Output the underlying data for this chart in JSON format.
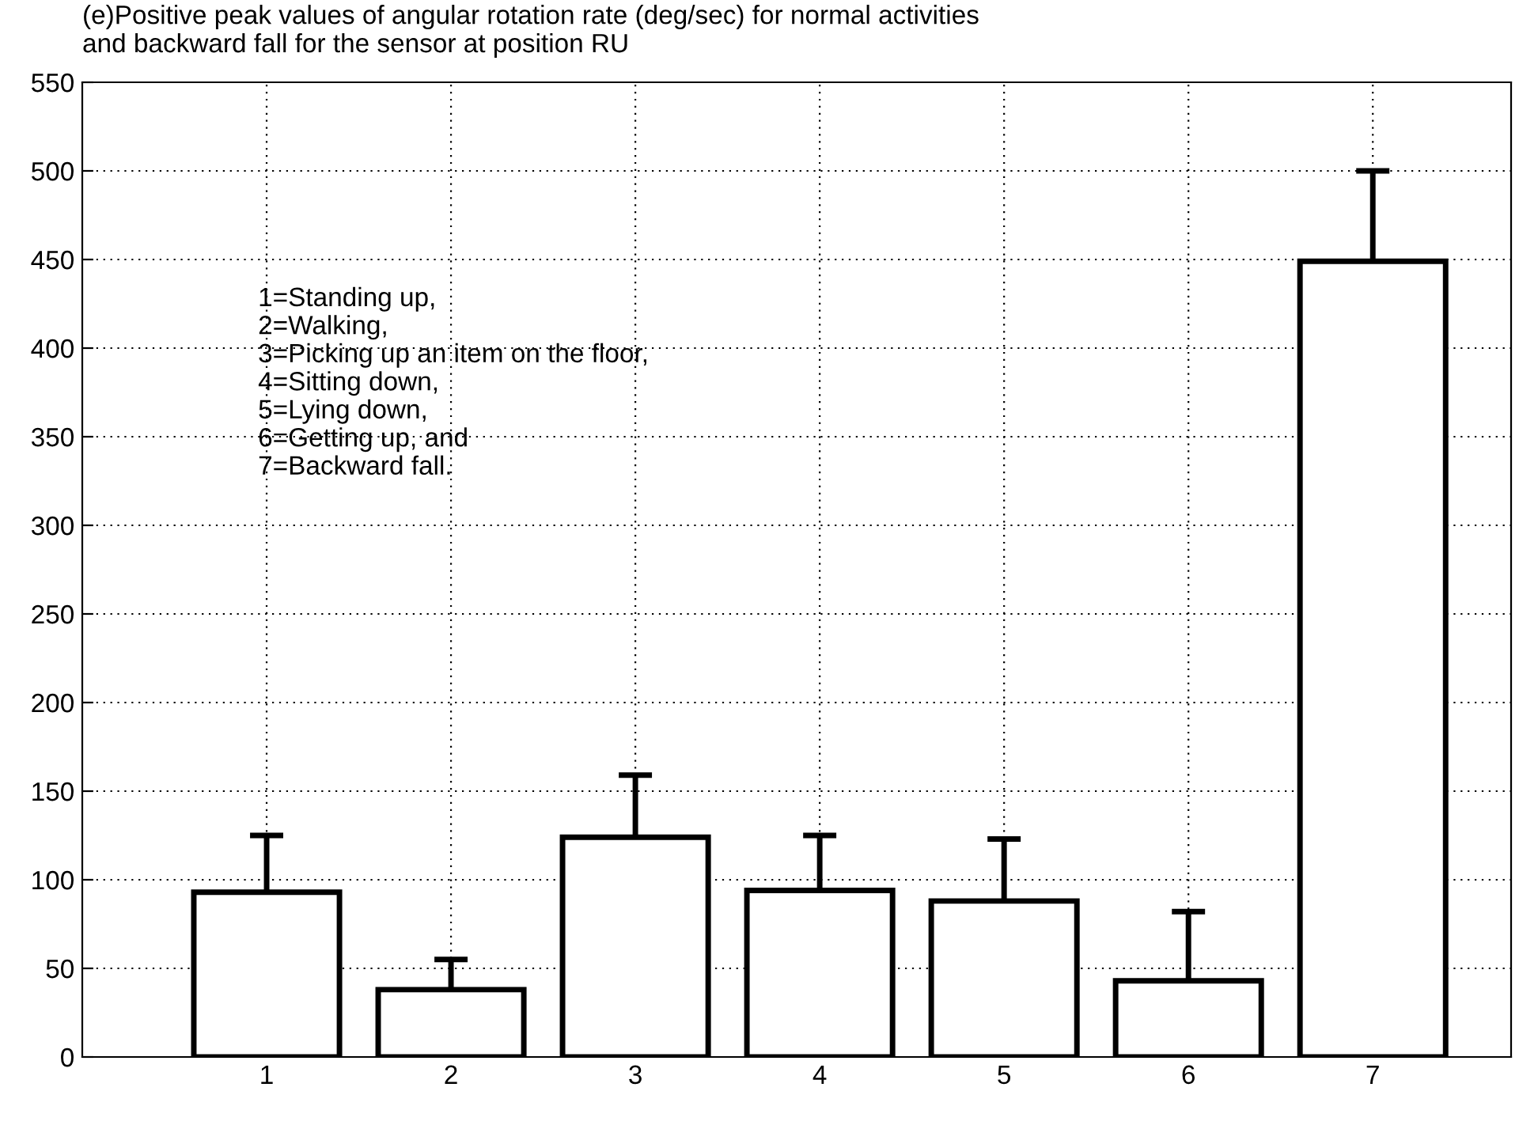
{
  "chart_data": {
    "type": "bar",
    "title": "(e)Positive peak values of angular rotation rate (deg/sec) for normal activities\nand backward fall for the sensor at position RU",
    "categories": [
      "1",
      "2",
      "3",
      "4",
      "5",
      "6",
      "7"
    ],
    "values": [
      93,
      38,
      124,
      94,
      88,
      43,
      449
    ],
    "errors": [
      [
        93,
        125
      ],
      [
        38,
        55
      ],
      [
        124,
        159
      ],
      [
        94,
        125
      ],
      [
        88,
        123
      ],
      [
        43,
        82
      ],
      [
        449,
        500
      ]
    ],
    "color": "#ffffff",
    "ylim": [
      0,
      550
    ],
    "yticks": [
      0,
      50,
      100,
      150,
      200,
      250,
      300,
      350,
      400,
      450,
      500,
      550
    ],
    "grid": true,
    "annotations": [
      "1=Standing up,",
      "2=Walking,",
      "3=Picking up an item on the floor,",
      "4=Sitting down,",
      "5=Lying down,",
      "6=Getting up, and",
      "7=Backward fall."
    ]
  }
}
